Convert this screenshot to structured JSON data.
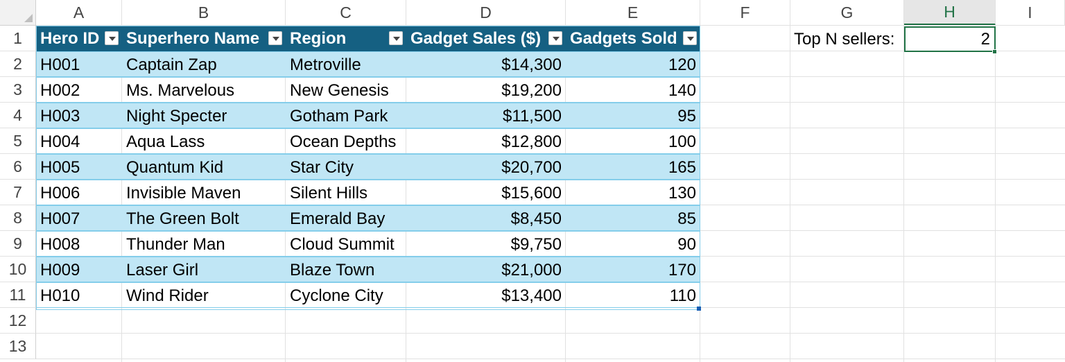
{
  "sheet": {
    "columns": [
      "A",
      "B",
      "C",
      "D",
      "E",
      "F",
      "G",
      "H",
      "I"
    ],
    "rows": [
      "1",
      "2",
      "3",
      "4",
      "5",
      "6",
      "7",
      "8",
      "9",
      "10",
      "11",
      "12",
      "13"
    ],
    "active_column": "H",
    "active_row": "1"
  },
  "table": {
    "headers": [
      "Hero ID",
      "Superhero Name",
      "Region",
      "Gadget Sales ($)",
      "Gadgets Sold"
    ],
    "rows": [
      [
        "H001",
        "Captain Zap",
        "Metroville",
        "$14,300",
        "120"
      ],
      [
        "H002",
        "Ms. Marvelous",
        "New Genesis",
        "$19,200",
        "140"
      ],
      [
        "H003",
        "Night Specter",
        "Gotham Park",
        "$11,500",
        "95"
      ],
      [
        "H004",
        "Aqua Lass",
        "Ocean Depths",
        "$12,800",
        "100"
      ],
      [
        "H005",
        "Quantum Kid",
        "Star City",
        "$20,700",
        "165"
      ],
      [
        "H006",
        "Invisible Maven",
        "Silent Hills",
        "$15,600",
        "130"
      ],
      [
        "H007",
        "The Green Bolt",
        "Emerald Bay",
        "$8,450",
        "85"
      ],
      [
        "H008",
        "Thunder Man",
        "Cloud Summit",
        "$9,750",
        "90"
      ],
      [
        "H009",
        "Laser Girl",
        "Blaze Town",
        "$21,000",
        "170"
      ],
      [
        "H010",
        "Wind Rider",
        "Cyclone City",
        "$13,400",
        "110"
      ]
    ],
    "colors": {
      "header_bg": "#156082",
      "band_bg": "#c0e6f5",
      "border": "#84cdea"
    }
  },
  "side": {
    "label": "Top N sellers:",
    "value": "2"
  },
  "icons": {
    "filter": "filter-dropdown-icon",
    "select_all": "select-all-corner-icon"
  }
}
